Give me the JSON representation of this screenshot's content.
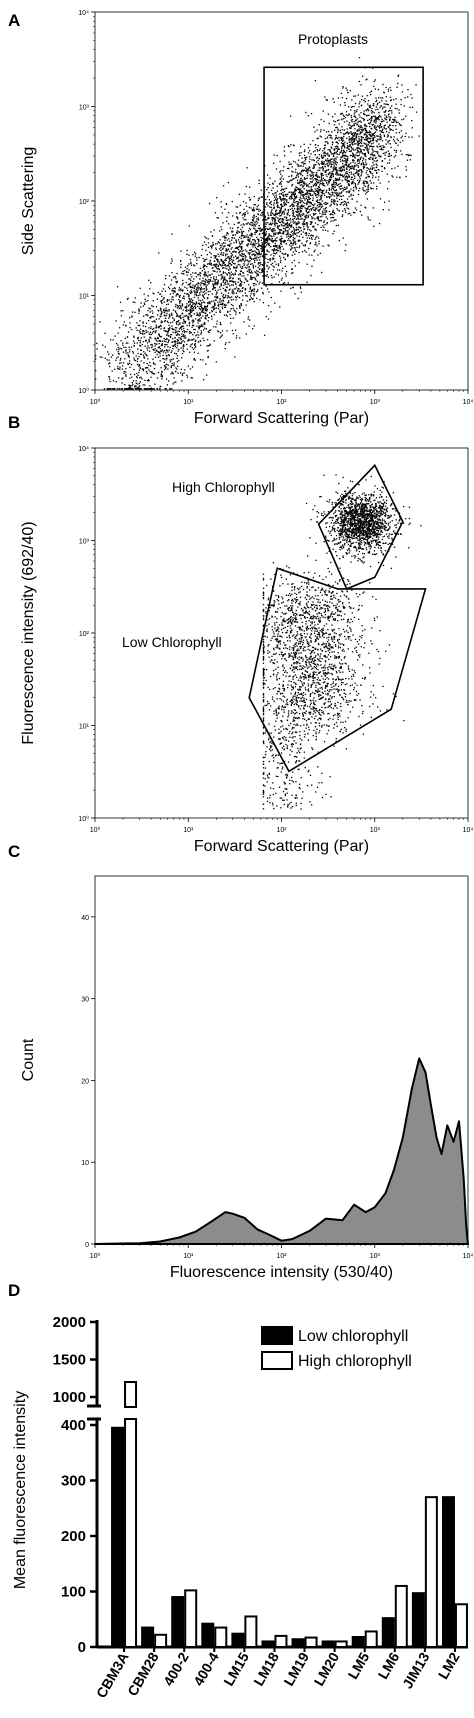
{
  "chart_data": [
    {
      "panel": "A",
      "type": "scatter",
      "xlabel": "Forward Scattering (Par)",
      "ylabel": "Side Scattering",
      "x_scale": "log",
      "y_scale": "log",
      "xlim": [
        1,
        10000
      ],
      "ylim": [
        1,
        10000
      ],
      "x_ticks": [
        "10⁰",
        "10¹",
        "10²",
        "10³",
        "10⁴"
      ],
      "y_ticks": [
        "10⁰",
        "10¹",
        "10²",
        "10³",
        "10⁴"
      ],
      "gates": [
        {
          "label": "Protoplasts",
          "x": [
            65,
            3300
          ],
          "y": [
            13,
            2600
          ]
        }
      ]
    },
    {
      "panel": "B",
      "type": "scatter",
      "xlabel": "Forward Scattering (Par)",
      "ylabel": "Fluorescence intensity (692/40)",
      "x_scale": "log",
      "y_scale": "log",
      "xlim": [
        1,
        10000
      ],
      "ylim": [
        1,
        10000
      ],
      "x_ticks": [
        "10⁰",
        "10¹",
        "10²",
        "10³",
        "10⁴"
      ],
      "y_ticks": [
        "10⁰",
        "10¹",
        "10²",
        "10³",
        "10⁴"
      ],
      "gates": [
        {
          "label": "High Chlorophyll",
          "polygon": [
            [
              250,
              1500
            ],
            [
              1000,
              6500
            ],
            [
              2000,
              1600
            ],
            [
              1000,
              400
            ],
            [
              500,
              300
            ]
          ]
        },
        {
          "label": "Low Chlorophyll",
          "polygon": [
            [
              90,
              500
            ],
            [
              400,
              300
            ],
            [
              3500,
              300
            ],
            [
              1500,
              15
            ],
            [
              120,
              3.2
            ],
            [
              45,
              20
            ]
          ]
        }
      ]
    },
    {
      "panel": "C",
      "type": "area",
      "xlabel": "Fluorescence intensity (530/40)",
      "ylabel": "Count",
      "x_scale": "log",
      "xlim": [
        1,
        10000
      ],
      "ylim": [
        0,
        45
      ],
      "x_ticks": [
        "10⁰",
        "10¹",
        "10²",
        "10³",
        "10⁴"
      ],
      "y_ticks": [
        "0",
        "10",
        "20",
        "30",
        "40"
      ],
      "x": [
        1,
        3,
        5,
        8,
        12,
        18,
        25,
        30,
        40,
        55,
        75,
        100,
        130,
        200,
        300,
        450,
        600,
        800,
        1000,
        1300,
        1600,
        2000,
        2500,
        3000,
        3500,
        4000,
        4600,
        5200,
        6000,
        7000,
        8000,
        9000,
        9600,
        10000
      ],
      "values": [
        0,
        0.1,
        0.3,
        0.8,
        1.5,
        2.8,
        3.9,
        3.7,
        3.2,
        1.8,
        1.1,
        0.4,
        0.6,
        1.6,
        3.1,
        2.9,
        4.8,
        3.9,
        4.5,
        6.2,
        9,
        13,
        19,
        22.7,
        21,
        17,
        13,
        11,
        14.5,
        12.5,
        15,
        8,
        2,
        0
      ]
    },
    {
      "panel": "D",
      "type": "bar",
      "ylabel": "Mean fluorescence intensity",
      "y_axis_break": true,
      "y_ticks_lower": [
        "0",
        "100",
        "200",
        "300",
        "400"
      ],
      "y_ticks_upper": [
        "1000",
        "1500",
        "2000"
      ],
      "legend_position": "top-right",
      "categories": [
        "CBM3A",
        "CBM28",
        "400-2",
        "400-4",
        "LM15",
        "LM18",
        "LM19",
        "LM20",
        "LM5",
        "LM6",
        "JIM13",
        "LM2"
      ],
      "series": [
        {
          "name": "Low chlorophyll",
          "values": [
            395,
            35,
            90,
            42,
            24,
            10,
            14,
            10,
            18,
            52,
            97,
            270
          ],
          "color": "#000000"
        },
        {
          "name": "High chlorophyll",
          "values": [
            1200,
            22,
            102,
            35,
            55,
            20,
            17,
            10,
            28,
            110,
            270,
            77
          ],
          "color": "#ffffff"
        }
      ]
    }
  ]
}
